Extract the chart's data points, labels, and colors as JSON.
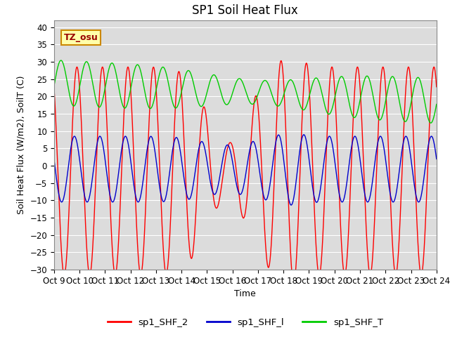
{
  "title": "SP1 Soil Heat Flux",
  "ylabel": "Soil Heat Flux (W/m2), SoilT (C)",
  "xlabel": "Time",
  "ylim": [
    -30,
    42
  ],
  "yticks": [
    -30,
    -25,
    -20,
    -15,
    -10,
    -5,
    0,
    5,
    10,
    15,
    20,
    25,
    30,
    35,
    40
  ],
  "xtick_labels": [
    "Oct 9",
    "Oct 10",
    "Oct 11",
    "Oct 12",
    "Oct 13",
    "Oct 14",
    "Oct 15",
    "Oct 16",
    "Oct 17",
    "Oct 18",
    "Oct 19",
    "Oct 20",
    "Oct 21",
    "Oct 22",
    "Oct 23",
    "Oct 24"
  ],
  "color_shf2": "#FF0000",
  "color_shf1": "#0000CC",
  "color_shfT": "#00CC00",
  "bg_color": "#DCDCDC",
  "annotation_text": "TZ_osu",
  "annotation_bg": "#FFFFAA",
  "annotation_border": "#CC8800",
  "legend_labels": [
    "sp1_SHF_2",
    "sp1_SHF_l",
    "sp1_SHF_T"
  ],
  "title_fontsize": 12,
  "label_fontsize": 9,
  "tick_fontsize": 8.5
}
